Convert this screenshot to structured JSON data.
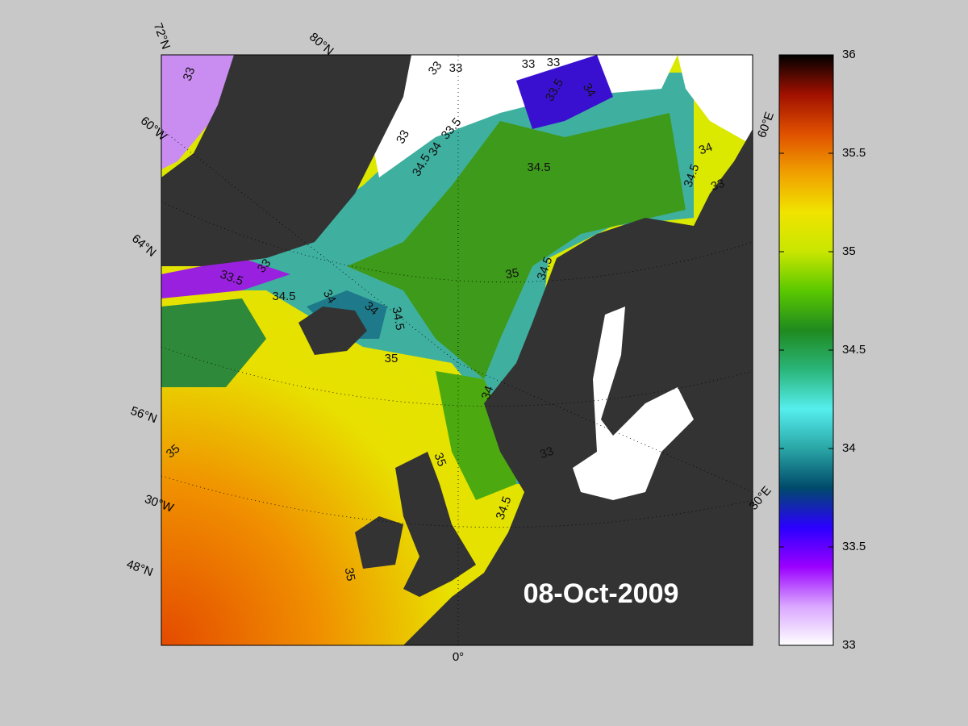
{
  "map": {
    "date_label": "08-Oct-2009",
    "graticule_labels": [
      "72°N",
      "80°N",
      "60°W",
      "64°N",
      "56°N",
      "30°W",
      "48°N",
      "0°",
      "30°E",
      "60°E"
    ],
    "contour_labels": [
      33,
      33,
      33,
      33,
      33,
      33.5,
      34,
      33,
      33.5,
      34,
      34.5,
      34.5,
      33,
      33.5,
      34.5,
      34,
      34,
      34.5,
      35,
      34.5,
      35,
      34.5,
      34,
      33,
      34,
      35,
      35,
      33,
      34.5,
      35
    ],
    "colorbar": {
      "lim": [
        33,
        36
      ],
      "ticks": [
        33,
        33.5,
        34,
        34.5,
        35,
        35.5,
        36
      ],
      "colormap": [
        "#ffffff",
        "#d9a6ff",
        "#9a00ff",
        "#2a00ff",
        "#004a6a",
        "#2aa6a6",
        "#55eeee",
        "#2ab57a",
        "#1f8a1f",
        "#5ac800",
        "#c8e600",
        "#f0e400",
        "#f0a000",
        "#e05000",
        "#a01000",
        "#000000"
      ]
    }
  }
}
